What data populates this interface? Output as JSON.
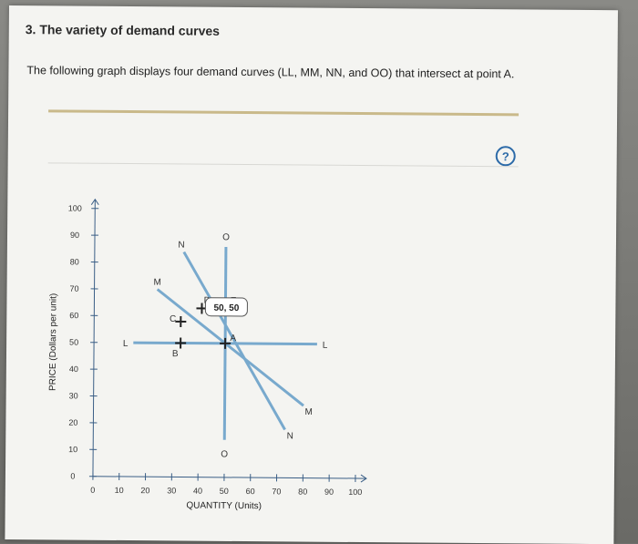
{
  "page": {
    "heading": "3. The variety of demand curves",
    "intro": "The following graph displays four demand curves (LL, MM, NN, and OO) that intersect at point A.",
    "help_label": "?"
  },
  "colors": {
    "curve": "#78a9cd",
    "axis": "#3a5e86",
    "marker": "#222222"
  },
  "chart_data": {
    "type": "line",
    "title": "",
    "xlabel": "QUANTITY (Units)",
    "ylabel": "PRICE (Dollars per unit)",
    "xlim": [
      0,
      100
    ],
    "ylim": [
      0,
      100
    ],
    "x_ticks": [
      0,
      10,
      20,
      30,
      40,
      50,
      60,
      70,
      80,
      90,
      100
    ],
    "y_ticks": [
      0,
      10,
      20,
      30,
      40,
      50,
      60,
      70,
      80,
      90,
      100
    ],
    "grid": false,
    "series": [
      {
        "name": "L",
        "points": [
          [
            15,
            50
          ],
          [
            85,
            50
          ]
        ],
        "labels": [
          [
            12,
            50
          ],
          [
            88,
            50
          ]
        ]
      },
      {
        "name": "M",
        "points": [
          [
            24,
            70
          ],
          [
            80,
            27
          ]
        ],
        "labels": [
          [
            24,
            73
          ],
          [
            82,
            25
          ]
        ]
      },
      {
        "name": "N",
        "points": [
          [
            34,
            84
          ],
          [
            73,
            18
          ]
        ],
        "labels": [
          [
            33,
            87
          ],
          [
            75,
            16
          ]
        ]
      },
      {
        "name": "O",
        "points": [
          [
            50,
            86
          ],
          [
            50,
            14
          ]
        ],
        "labels": [
          [
            50,
            90
          ],
          [
            50,
            9
          ]
        ]
      }
    ],
    "points": [
      {
        "name": "A",
        "x": 50,
        "y": 50,
        "label_pos": [
          53,
          52
        ]
      },
      {
        "name": "B",
        "x": 33,
        "y": 50,
        "label_pos": [
          31,
          46
        ]
      },
      {
        "name": "C",
        "x": 33,
        "y": 58,
        "label_pos": [
          30,
          59
        ]
      },
      {
        "name": "D",
        "x": 41,
        "y": 63,
        "label_pos": [
          43,
          66
        ]
      },
      {
        "name": "E",
        "x": 50,
        "y": 63,
        "label_pos": [
          53,
          66
        ]
      }
    ],
    "callout": {
      "text": "50, 50",
      "anchor": [
        50,
        50
      ]
    }
  }
}
